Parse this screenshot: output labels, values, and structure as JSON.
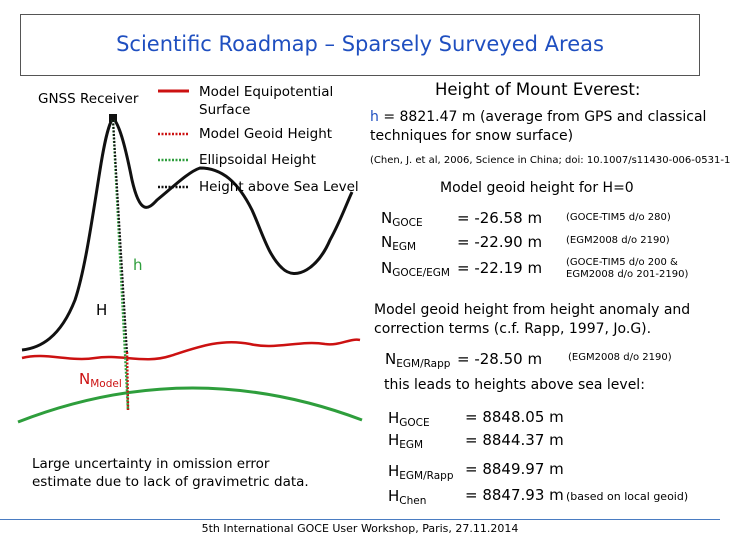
{
  "title": "Scientific Roadmap – Sparsely Surveyed Areas",
  "legend": {
    "gnss_receiver": "GNSS Receiver",
    "equipotential": "Model Equipotential Surface",
    "geoid": "Model Geoid Height",
    "ellipsoidal": "Ellipsoidal Height",
    "sea_level": "Height above Sea Level"
  },
  "colors": {
    "title": "#1f4fc0",
    "equipotential": "#cc1111",
    "geoid": "#cc1111",
    "ellipsoidal": "#2e9e3c",
    "sea_level": "#111111",
    "terrain": "#111111",
    "ellipsoid_arc": "#2e9e3c"
  },
  "diagram_labels": {
    "h": "h",
    "H": "H",
    "N": "N",
    "N_sub": "Model"
  },
  "left_note": "Large uncertainty in omission error estimate due to lack of gravimetric data.",
  "everest": {
    "heading": "Height of Mount Everest:",
    "h_label": "h",
    "h_text": " = 8821.47 m (average from GPS and classical techniques for snow surface)",
    "citation": "(Chen, J. et al, 2006, Science in China; doi: 10.1007/s11430-006-0531-1"
  },
  "geoid_section": {
    "heading": "Model geoid height for H=0",
    "rows": [
      {
        "sym": "N",
        "sub": "GOCE",
        "value": "= -26.58 m",
        "note": "(GOCE-TIM5 d/o 280)"
      },
      {
        "sym": "N",
        "sub": "EGM",
        "value": "= -22.90 m",
        "note": "(EGM2008 d/o 2190)"
      },
      {
        "sym": "N",
        "sub": "GOCE/EGM",
        "value": "= -22.19 m",
        "note": "(GOCE-TIM5 d/o 200 & EGM2008 d/o 201-2190)"
      }
    ]
  },
  "anomaly_section": {
    "text": "Model geoid height from height anomaly and correction terms (c.f. Rapp, 1997, Jo.G).",
    "row": {
      "sym": "N",
      "sub": "EGM/Rapp",
      "value": "= -28.50 m",
      "note": "(EGM2008 d/o 2190)"
    },
    "leads": "this leads to heights above sea level:"
  },
  "heights": [
    {
      "sym": "H",
      "sub": "GOCE",
      "value": "= 8848.05 m",
      "note": ""
    },
    {
      "sym": "H",
      "sub": "EGM",
      "value": "= 8844.37 m",
      "note": ""
    },
    {
      "sym": "H",
      "sub": "EGM/Rapp",
      "value": "= 8849.97 m",
      "note": ""
    },
    {
      "sym": "H",
      "sub": "Chen",
      "value": "= 8847.93 m",
      "note": "(based on local geoid)"
    }
  ],
  "footer": "5th International GOCE User Workshop, Paris, 27.11.2014"
}
